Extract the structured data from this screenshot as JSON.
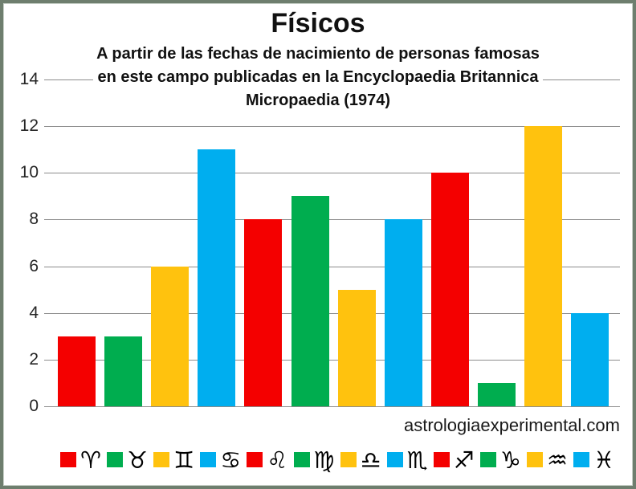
{
  "frame": {
    "border_color": "#6e7e6e"
  },
  "chart_data": {
    "type": "bar",
    "title": "Físicos",
    "subtitle_lines": [
      "A partir de las fechas de nacimiento de personas famosas",
      "en este campo publicadas en la Encyclopaedia Britannica",
      "Micropaedia (1974)"
    ],
    "categories": [
      "Aries",
      "Tauro",
      "Géminis",
      "Cáncer",
      "Leo",
      "Virgo",
      "Libra",
      "Escorpio",
      "Sagitario",
      "Capricornio",
      "Acuario",
      "Piscis"
    ],
    "category_ids": [
      "aries",
      "tauro",
      "geminis",
      "cancer",
      "leo",
      "virgo",
      "libra",
      "escorpio",
      "sagitario",
      "capricornio",
      "acuario",
      "piscis"
    ],
    "symbols": [
      "♈",
      "♉",
      "♊",
      "♋",
      "♌",
      "♍",
      "♎",
      "♏",
      "♐",
      "♑",
      "♒",
      "♓"
    ],
    "values": [
      3,
      3,
      6,
      11,
      8,
      9,
      5,
      8,
      10,
      1,
      12,
      4
    ],
    "palette": [
      "#f40000",
      "#00ad4f",
      "#ffc20e",
      "#00aeef"
    ],
    "ylim": [
      0,
      14
    ],
    "yticks": [
      0,
      2,
      4,
      6,
      8,
      10,
      12,
      14
    ],
    "grid": true,
    "gridline_color": "#8c8c8c",
    "legend_position": "bottom",
    "watermark": "astrologiaexperimental.com"
  }
}
